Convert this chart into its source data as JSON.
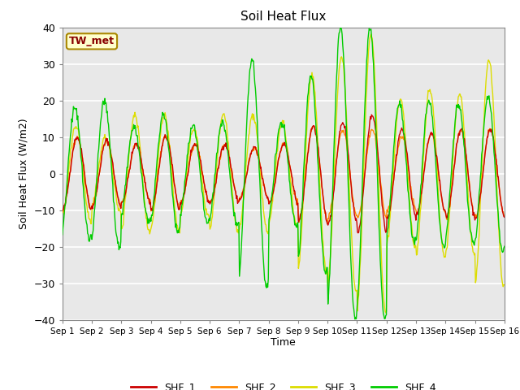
{
  "title": "Soil Heat Flux",
  "xlabel": "Time",
  "ylabel": "Soil Heat Flux (W/m2)",
  "ylim": [
    -40,
    40
  ],
  "yticks": [
    -40,
    -30,
    -20,
    -10,
    0,
    10,
    20,
    30,
    40
  ],
  "xtick_labels": [
    "Sep 1",
    "Sep 2",
    "Sep 3",
    "Sep 4",
    "Sep 5",
    "Sep 6",
    "Sep 7",
    "Sep 8",
    "Sep 9",
    "Sep 10",
    "Sep 11",
    "Sep 12",
    "Sep 13",
    "Sep 14",
    "Sep 15",
    "Sep 16"
  ],
  "bg_color": "#e8e8e8",
  "grid_color": "#ffffff",
  "line_colors": {
    "SHF_1": "#cc0000",
    "SHF_2": "#ff8800",
    "SHF_3": "#dddd00",
    "SHF_4": "#00cc00"
  },
  "legend_label": "TW_met",
  "legend_bg": "#ffffcc",
  "legend_border": "#aa8800",
  "amp1": [
    10,
    9,
    8,
    10,
    8,
    8,
    7,
    8,
    13,
    14,
    16,
    12,
    11,
    12,
    12
  ],
  "amp2": [
    10,
    9,
    8,
    10,
    8,
    8,
    7,
    8,
    13,
    12,
    12,
    10,
    11,
    12,
    12
  ],
  "amp3": [
    13,
    10,
    16,
    16,
    12,
    16,
    16,
    14,
    27,
    32,
    38,
    20,
    23,
    22,
    31
  ],
  "amp4": [
    18,
    20,
    13,
    16,
    13,
    14,
    31,
    14,
    27,
    40,
    40,
    19,
    20,
    19,
    21
  ],
  "phase1": -1.5708,
  "phase2": -1.5708,
  "phase3": -1.3,
  "phase4": -1.1
}
